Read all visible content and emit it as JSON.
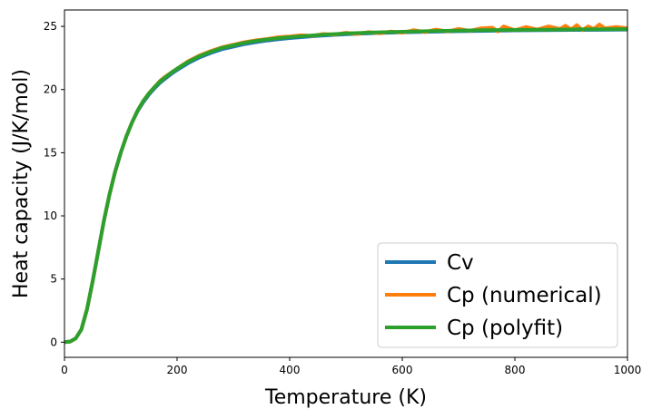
{
  "chart_data": {
    "type": "line",
    "xlabel": "Temperature (K)",
    "ylabel": "Heat capacity (J/K/mol)",
    "xlim": [
      0,
      1000
    ],
    "ylim": [
      -1.2,
      26.3
    ],
    "xticks": [
      0,
      200,
      400,
      600,
      800,
      1000
    ],
    "yticks": [
      0,
      5,
      10,
      15,
      20,
      25
    ],
    "grid": false,
    "legend_position": "lower-right",
    "series": [
      {
        "name": "Cv",
        "color": "#1f77b4",
        "x": [
          0,
          10,
          20,
          30,
          40,
          50,
          60,
          70,
          80,
          90,
          100,
          110,
          120,
          130,
          140,
          150,
          160,
          170,
          180,
          190,
          200,
          220,
          240,
          260,
          280,
          300,
          320,
          340,
          360,
          380,
          400,
          450,
          500,
          550,
          600,
          650,
          700,
          750,
          800,
          850,
          900,
          950,
          1000
        ],
        "y": [
          0,
          0.05,
          0.3,
          1.0,
          2.6,
          4.8,
          7.2,
          9.6,
          11.7,
          13.5,
          15.0,
          16.3,
          17.4,
          18.3,
          19.0,
          19.6,
          20.1,
          20.55,
          20.9,
          21.25,
          21.55,
          22.1,
          22.55,
          22.9,
          23.2,
          23.4,
          23.6,
          23.75,
          23.88,
          23.98,
          24.07,
          24.25,
          24.38,
          24.47,
          24.53,
          24.58,
          24.62,
          24.65,
          24.68,
          24.7,
          24.72,
          24.73,
          24.75
        ]
      },
      {
        "name": "Cp (numerical)",
        "color": "#ff7f0e",
        "x": [
          0,
          10,
          20,
          30,
          40,
          50,
          60,
          70,
          80,
          90,
          100,
          110,
          120,
          130,
          140,
          150,
          160,
          170,
          180,
          190,
          200,
          210,
          220,
          240,
          260,
          280,
          300,
          320,
          340,
          360,
          380,
          400,
          420,
          440,
          460,
          480,
          500,
          520,
          540,
          560,
          580,
          600,
          620,
          640,
          660,
          680,
          700,
          720,
          740,
          760,
          770,
          780,
          790,
          800,
          820,
          840,
          860,
          880,
          890,
          900,
          910,
          920,
          930,
          940,
          950,
          960,
          980,
          1000
        ],
        "y": [
          0,
          0.05,
          0.3,
          1.0,
          2.6,
          4.8,
          7.2,
          9.6,
          11.7,
          13.5,
          15.0,
          16.3,
          17.4,
          18.35,
          19.1,
          19.7,
          20.2,
          20.7,
          21.05,
          21.35,
          21.65,
          21.95,
          22.25,
          22.7,
          23.05,
          23.35,
          23.55,
          23.75,
          23.9,
          24.0,
          24.15,
          24.2,
          24.3,
          24.25,
          24.4,
          24.35,
          24.5,
          24.4,
          24.55,
          24.45,
          24.6,
          24.5,
          24.7,
          24.55,
          24.75,
          24.6,
          24.8,
          24.65,
          24.85,
          24.9,
          24.6,
          25.0,
          24.85,
          24.7,
          24.95,
          24.75,
          25.0,
          24.8,
          25.05,
          24.75,
          25.1,
          24.7,
          25.0,
          24.8,
          25.15,
          24.85,
          24.95,
          24.85
        ]
      },
      {
        "name": "Cp (polyfit)",
        "color": "#2ca02c",
        "x": [
          0,
          10,
          20,
          30,
          40,
          50,
          60,
          70,
          80,
          90,
          100,
          110,
          120,
          130,
          140,
          150,
          160,
          170,
          180,
          190,
          200,
          220,
          240,
          260,
          280,
          300,
          320,
          340,
          360,
          380,
          400,
          450,
          500,
          550,
          600,
          650,
          700,
          750,
          800,
          850,
          900,
          950,
          1000
        ],
        "y": [
          0,
          0.05,
          0.3,
          1.0,
          2.6,
          4.8,
          7.2,
          9.6,
          11.7,
          13.5,
          15.0,
          16.3,
          17.4,
          18.35,
          19.1,
          19.7,
          20.2,
          20.65,
          21.0,
          21.35,
          21.65,
          22.2,
          22.65,
          23.0,
          23.3,
          23.5,
          23.7,
          23.85,
          23.97,
          24.07,
          24.15,
          24.32,
          24.44,
          24.52,
          24.58,
          24.63,
          24.67,
          24.7,
          24.72,
          24.74,
          24.76,
          24.77,
          24.78
        ]
      }
    ]
  }
}
